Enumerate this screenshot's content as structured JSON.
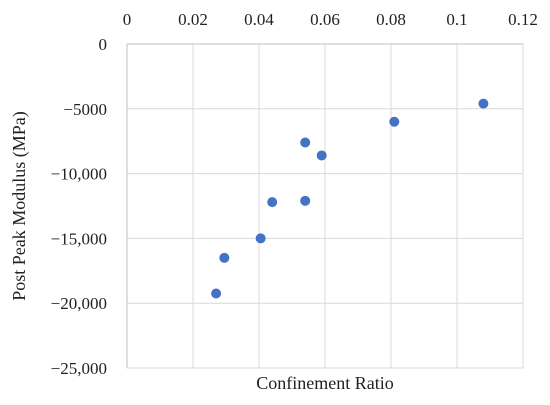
{
  "chart_data": {
    "type": "scatter",
    "title": "",
    "xlabel": "Confinement Ratio",
    "ylabel": "Post Peak Modulus (MPa)",
    "xlim": [
      0,
      0.12
    ],
    "ylim": [
      -25000,
      0
    ],
    "x_ticks": [
      0,
      0.02,
      0.04,
      0.06,
      0.08,
      0.1,
      0.12
    ],
    "x_tick_labels": [
      "0",
      "0.02",
      "0.04",
      "0.06",
      "0.08",
      "0.1",
      "0.12"
    ],
    "y_ticks": [
      0,
      -5000,
      -10000,
      -15000,
      -20000,
      -25000
    ],
    "y_tick_labels": [
      "0",
      "−5000",
      "−10,000",
      "−15,000",
      "−20,000",
      "−25,000"
    ],
    "x_axis_position": "top",
    "grid": true,
    "legend": "none",
    "series": [
      {
        "color": "#4472C4",
        "points": [
          {
            "x": 0.027,
            "y": -19250
          },
          {
            "x": 0.0295,
            "y": -16500
          },
          {
            "x": 0.0405,
            "y": -15000
          },
          {
            "x": 0.044,
            "y": -12200
          },
          {
            "x": 0.054,
            "y": -12100
          },
          {
            "x": 0.054,
            "y": -7600
          },
          {
            "x": 0.059,
            "y": -8600
          },
          {
            "x": 0.081,
            "y": -6000
          },
          {
            "x": 0.108,
            "y": -4600
          }
        ]
      }
    ]
  }
}
